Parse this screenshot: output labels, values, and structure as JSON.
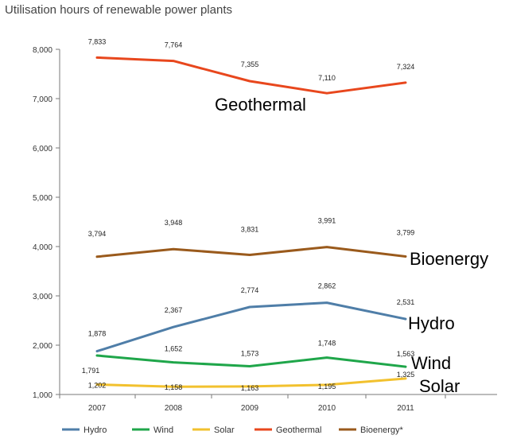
{
  "chart_data": {
    "type": "line",
    "title": "Utilisation hours of renewable power plants",
    "categories": [
      "2007",
      "2008",
      "2009",
      "2010",
      "2011"
    ],
    "ylim": [
      1000,
      8000
    ],
    "yticks": [
      "1,000",
      "2,000",
      "3,000",
      "4,000",
      "5,000",
      "6,000",
      "7,000",
      "8,000"
    ],
    "grid": false,
    "legend_position": "bottom",
    "series": [
      {
        "name": "Hydro",
        "color": "#4f7ea8",
        "values": [
          1878,
          2367,
          2774,
          2862,
          2531
        ],
        "labels": [
          "1,878",
          "2,367",
          "2,774",
          "2,862",
          "2,531"
        ],
        "annotation": "Hydro"
      },
      {
        "name": "Wind",
        "color": "#1fa64a",
        "values": [
          1791,
          1652,
          1573,
          1748,
          1563
        ],
        "labels": [
          "1,791",
          "1,652",
          "1,573",
          "1,748",
          "1,563"
        ],
        "annotation": "Wind"
      },
      {
        "name": "Solar",
        "color": "#f2c12e",
        "values": [
          1202,
          1158,
          1163,
          1195,
          1325
        ],
        "labels": [
          "1,202",
          "1,158",
          "1,163",
          "1,195",
          "1,325"
        ],
        "annotation": "Solar"
      },
      {
        "name": "Geothermal",
        "color": "#e8471d",
        "values": [
          7833,
          7764,
          7355,
          7110,
          7324
        ],
        "labels": [
          "7,833",
          "7,764",
          "7,355",
          "7,110",
          "7,324"
        ],
        "annotation": "Geothermal"
      },
      {
        "name": "Bioenergy*",
        "color": "#9a5a1c",
        "values": [
          3794,
          3948,
          3831,
          3991,
          3799
        ],
        "labels": [
          "3,794",
          "3,948",
          "3,831",
          "3,991",
          "3,799"
        ],
        "annotation": "Bioenergy"
      }
    ]
  }
}
